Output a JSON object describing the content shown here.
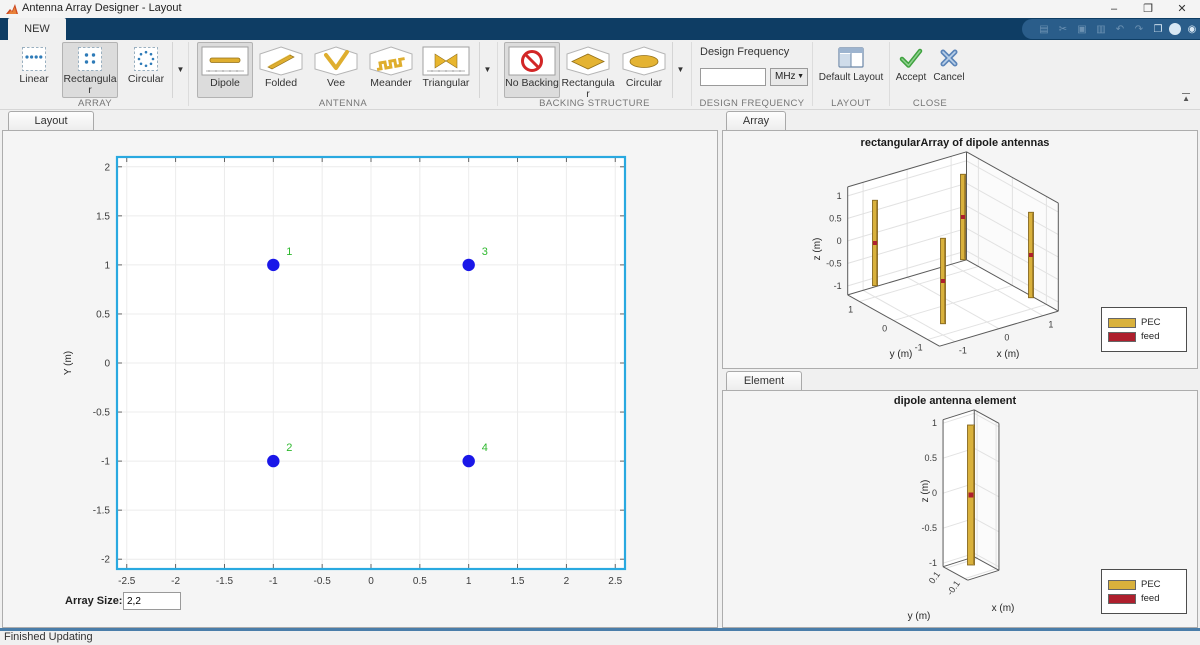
{
  "window": {
    "title": "Antenna Array Designer - Layout",
    "minimize_glyph": "–",
    "restore_glyph": "❐",
    "close_glyph": "✕"
  },
  "quick_access_icons": [
    "save",
    "cut",
    "copy",
    "paste",
    "undo",
    "redo",
    "window-layout",
    "help",
    "community"
  ],
  "ribbon": {
    "tab_label": "NEW",
    "array": {
      "section_label": "ARRAY",
      "items": [
        {
          "label": "Linear"
        },
        {
          "label": "Rectangular"
        },
        {
          "label": "Circular"
        }
      ]
    },
    "antenna": {
      "section_label": "ANTENNA",
      "items": [
        {
          "label": "Dipole"
        },
        {
          "label": "Folded"
        },
        {
          "label": "Vee"
        },
        {
          "label": "Meander"
        },
        {
          "label": "Triangular"
        }
      ]
    },
    "backing": {
      "section_label": "BACKING STRUCTURE",
      "items": [
        {
          "label": "No Backing"
        },
        {
          "label": "Rectangular"
        },
        {
          "label": "Circular"
        }
      ]
    },
    "design_frequency": {
      "section_label": "DESIGN FREQUENCY",
      "field_label": "Design Frequency",
      "value": "",
      "unit": "MHz"
    },
    "layout_section": {
      "section_label": "LAYOUT",
      "button_label": "Default Layout"
    },
    "close_section": {
      "section_label": "CLOSE",
      "accept_label": "Accept",
      "cancel_label": "Cancel"
    }
  },
  "left_panel": {
    "tab_label": "Layout",
    "array_size_label": "Array Size:",
    "array_size_value": "2,2"
  },
  "array_panel": {
    "tab_label": "Array"
  },
  "element_panel": {
    "tab_label": "Element"
  },
  "status_bar": {
    "text": "Finished Updating"
  },
  "chart_data": [
    {
      "type": "scatter",
      "title": "",
      "xlabel": "",
      "ylabel": "Y (m)",
      "xlim": [
        -2.6,
        2.6
      ],
      "ylim": [
        -2.1,
        2.1
      ],
      "xticks": [
        -2.5,
        -2,
        -1.5,
        -1,
        -0.5,
        0,
        0.5,
        1,
        1.5,
        2,
        2.5
      ],
      "yticks": [
        -2,
        -1.5,
        -1,
        -0.5,
        0,
        0.5,
        1,
        1.5,
        2
      ],
      "grid": true,
      "points": [
        {
          "x": -1,
          "y": 1,
          "label": "1"
        },
        {
          "x": -1,
          "y": -1,
          "label": "2"
        },
        {
          "x": 1,
          "y": 1,
          "label": "3"
        },
        {
          "x": 1,
          "y": -1,
          "label": "4"
        }
      ],
      "marker_color": "#1a17e8",
      "label_color": "#2eb82e",
      "axes_border_color": "#29a9e0"
    },
    {
      "type": "3d-antenna-array",
      "title": "rectangularArray of dipole antennas",
      "xlabel": "x (m)",
      "ylabel": "y (m)",
      "zlabel": "z (m)",
      "xticks": [
        -1,
        0,
        1
      ],
      "yticks": [
        1,
        0,
        -1
      ],
      "zticks": [
        1,
        0.5,
        0,
        -0.5,
        -1
      ],
      "xlim": [
        -1.35,
        1.35
      ],
      "ylim": [
        -1.35,
        1.35
      ],
      "zlim": [
        -1.2,
        1.2
      ],
      "elements": [
        {
          "x": -1,
          "y": 1
        },
        {
          "x": 1,
          "y": 1
        },
        {
          "x": -1,
          "y": -1
        },
        {
          "x": 1,
          "y": -1
        }
      ],
      "dipole_half_length": 0.95,
      "legend": [
        {
          "name": "PEC",
          "color": "#d9b13c"
        },
        {
          "name": "feed",
          "color": "#ae1f2d"
        }
      ]
    },
    {
      "type": "3d-antenna-element",
      "title": "dipole antenna element",
      "xlabel": "x (m)",
      "ylabel": "y (m)",
      "zlabel": "z (m)",
      "xticks": [],
      "yticks": [
        0.1,
        -0.1
      ],
      "zticks": [
        1,
        0.5,
        0,
        -0.5,
        -1
      ],
      "xlim": [
        -0.13,
        0.13
      ],
      "ylim": [
        -0.13,
        0.13
      ],
      "zlim": [
        -1.05,
        1.05
      ],
      "elements": [
        {
          "x": 0,
          "y": 0
        }
      ],
      "dipole_half_length": 1.0,
      "legend": [
        {
          "name": "PEC",
          "color": "#d9b13c"
        },
        {
          "name": "feed",
          "color": "#ae1f2d"
        }
      ]
    }
  ]
}
